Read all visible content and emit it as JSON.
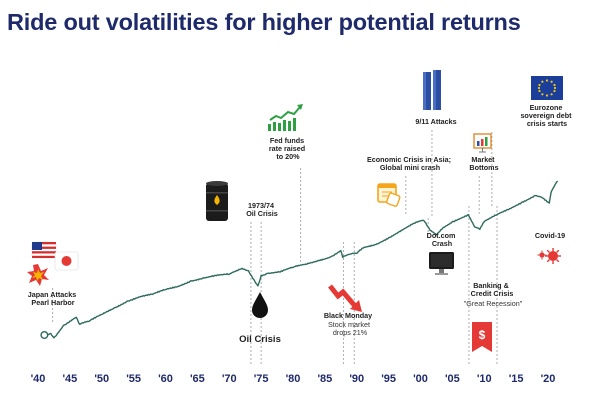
{
  "title": "Ride out volatilities for higher potential returns",
  "colors": {
    "title": "#1f2a6b",
    "line": "#2e6b5c",
    "guide": "#9a9a9a",
    "tick": "#1f2a6b",
    "accent_red": "#e53935",
    "accent_green": "#2ea043"
  },
  "chart_data": {
    "type": "line",
    "title": "Ride out volatilities for higher potential returns",
    "xlabel": "",
    "ylabel": "",
    "xlim": [
      1939.5,
      2022
    ],
    "ylog": true,
    "grid": false,
    "legend": "none",
    "x_ticks": [
      1940,
      1945,
      1950,
      1955,
      1960,
      1965,
      1970,
      1975,
      1980,
      1985,
      1990,
      1995,
      2000,
      2005,
      2010,
      2015,
      2020
    ],
    "x_tick_labels": [
      "'40",
      "'45",
      "'50",
      "'55",
      "'60",
      "'65",
      "'70",
      "'75",
      "'80",
      "'85",
      "'90",
      "'95",
      "'00",
      "'05",
      "'10",
      "'15",
      "'20"
    ],
    "series": [
      {
        "x": [
          1941,
          1942,
          1942.5,
          1944,
          1946,
          1946.5,
          1948,
          1950,
          1952,
          1954,
          1956,
          1958,
          1960,
          1962,
          1964,
          1966,
          1968,
          1970,
          1972,
          1973,
          1974.5,
          1975,
          1976,
          1978,
          1980,
          1982,
          1984,
          1986,
          1987.5,
          1987.8,
          1989,
          1990,
          1991,
          1993,
          1995,
          1997,
          1999,
          2000.5,
          2001.5,
          2002.5,
          2003.5,
          2005,
          2007.5,
          2008.5,
          2009.3,
          2010,
          2012,
          2014,
          2016,
          2018,
          2019,
          2020.2,
          2020.5,
          2021.5
        ],
        "y": [
          1.0,
          1.04,
          0.93,
          1.28,
          1.58,
          1.32,
          1.42,
          1.7,
          2.02,
          2.4,
          2.68,
          2.85,
          3.22,
          3.52,
          4.05,
          4.35,
          4.62,
          4.78,
          5.58,
          5.25,
          3.55,
          4.62,
          4.9,
          5.08,
          5.72,
          6.22,
          6.85,
          7.55,
          8.8,
          7.4,
          8.05,
          8.2,
          9.4,
          10.3,
          12.3,
          14.9,
          17.8,
          19.2,
          14.8,
          13.2,
          15.8,
          18.6,
          22.3,
          16.2,
          15.2,
          18.5,
          22.2,
          26.0,
          31.0,
          36.5,
          35.0,
          30.0,
          40.0,
          53.0
        ]
      }
    ],
    "annotations": [
      {
        "key": "pearl",
        "year": 1942,
        "lines": [
          "Japan Attacks",
          "Pearl Harbor"
        ]
      },
      {
        "key": "oil",
        "year": 1973.5,
        "lines": [
          "1973/74",
          "Oil Crisis"
        ],
        "label": "Oil Crisis"
      },
      {
        "key": "fed",
        "year": 1981,
        "lines": [
          "Fed funds",
          "rate raised",
          "to 20%"
        ]
      },
      {
        "key": "black_monday",
        "year": 1987.8,
        "title": "Black Monday",
        "lines": [
          "Stock market",
          "drops 21%"
        ]
      },
      {
        "key": "asia",
        "year": 1997.5,
        "lines": [
          "Economic Crisis in Asia;",
          "Global mini crash"
        ]
      },
      {
        "key": "nine_eleven",
        "year": 2001.7,
        "lines": [
          "9/11 Attacks"
        ]
      },
      {
        "key": "dotcom",
        "year": 2001,
        "lines": [
          "Dot.com",
          "Crash"
        ]
      },
      {
        "key": "bottoms",
        "year": 2009.2,
        "lines": [
          "Market",
          "Bottoms"
        ]
      },
      {
        "key": "banking",
        "year": 2008.2,
        "lines": [
          "Banking &",
          "Credit Crisis"
        ],
        "sub": "\"Great Recession\""
      },
      {
        "key": "eurozone",
        "year": 2011,
        "lines": [
          "Eurozone",
          "sovereign debt",
          "crisis starts"
        ]
      },
      {
        "key": "covid",
        "year": 2020.3,
        "lines": [
          "Covid-19"
        ]
      }
    ]
  }
}
